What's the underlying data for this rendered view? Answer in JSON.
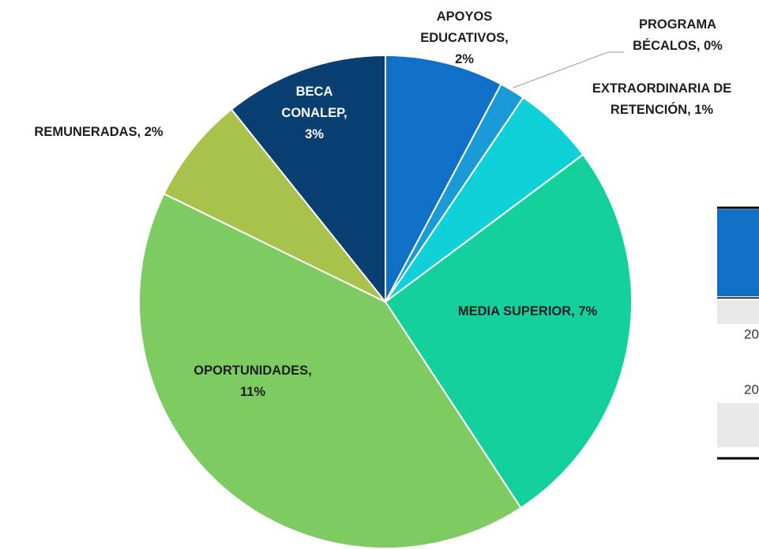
{
  "chart_data": {
    "type": "pie",
    "labels": [
      "APOYOS EDUCATIVOS, 2%",
      "PROGRAMA BÉCALOS, 0%",
      "EXTRAORDINARIA DE RETENCIÓN, 1%",
      "MEDIA SUPERIOR, 7%",
      "OPORTUNIDADES, 11%",
      "REMUNERADAS, 2%",
      "BECA CONALEP, 3%"
    ],
    "values": [
      2.1,
      0.45,
      1.45,
      7,
      11.2,
      1.9,
      2.9
    ],
    "colors": [
      "#1070c8",
      "#1a9ad6",
      "#10d0d8",
      "#14d09c",
      "#7ecb62",
      "#a8c24c",
      "#0a3f72"
    ]
  },
  "table": {
    "rows": [
      "20",
      "20"
    ]
  }
}
